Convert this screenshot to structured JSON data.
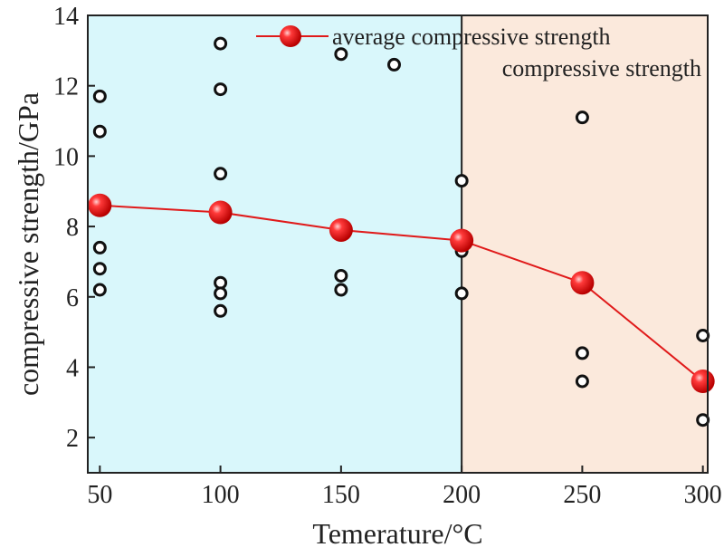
{
  "chart_data": {
    "type": "scatter",
    "xlabel": "Temerature/°C",
    "ylabel": "compressive strength/GPa",
    "xlim": [
      45,
      302
    ],
    "ylim": [
      1.0,
      14.0
    ],
    "xticks": [
      50,
      100,
      150,
      200,
      250,
      300
    ],
    "yticks": [
      2,
      4,
      6,
      8,
      10,
      12,
      14
    ],
    "regions": [
      {
        "from": 45,
        "to": 200,
        "color": "#d9f7fb"
      },
      {
        "from": 200,
        "to": 302,
        "color": "#fbe9dc"
      }
    ],
    "divider_x": 200,
    "legend_position": "top-right",
    "series": [
      {
        "name": "average compressive strength",
        "kind": "line-marker",
        "color": "#e01a1a",
        "points": [
          {
            "x": 50,
            "y": 8.6
          },
          {
            "x": 100,
            "y": 8.4
          },
          {
            "x": 150,
            "y": 7.9
          },
          {
            "x": 200,
            "y": 7.6
          },
          {
            "x": 250,
            "y": 6.4
          },
          {
            "x": 300,
            "y": 3.6
          }
        ]
      },
      {
        "name": "compressive strength",
        "kind": "scatter",
        "color": "#111111",
        "points": [
          {
            "x": 50,
            "y": 11.7
          },
          {
            "x": 50,
            "y": 10.7
          },
          {
            "x": 50,
            "y": 7.4
          },
          {
            "x": 50,
            "y": 6.8
          },
          {
            "x": 50,
            "y": 6.2
          },
          {
            "x": 100,
            "y": 13.2
          },
          {
            "x": 100,
            "y": 11.9
          },
          {
            "x": 100,
            "y": 9.5
          },
          {
            "x": 100,
            "y": 6.4
          },
          {
            "x": 100,
            "y": 6.1
          },
          {
            "x": 100,
            "y": 5.6
          },
          {
            "x": 150,
            "y": 12.9
          },
          {
            "x": 150,
            "y": 6.6
          },
          {
            "x": 150,
            "y": 6.2
          },
          {
            "x": 172,
            "y": 12.6
          },
          {
            "x": 200,
            "y": 9.3
          },
          {
            "x": 200,
            "y": 7.3
          },
          {
            "x": 200,
            "y": 6.1
          },
          {
            "x": 250,
            "y": 11.1
          },
          {
            "x": 250,
            "y": 4.4
          },
          {
            "x": 250,
            "y": 3.6
          },
          {
            "x": 300,
            "y": 4.9
          },
          {
            "x": 300,
            "y": 2.5
          }
        ]
      }
    ]
  }
}
